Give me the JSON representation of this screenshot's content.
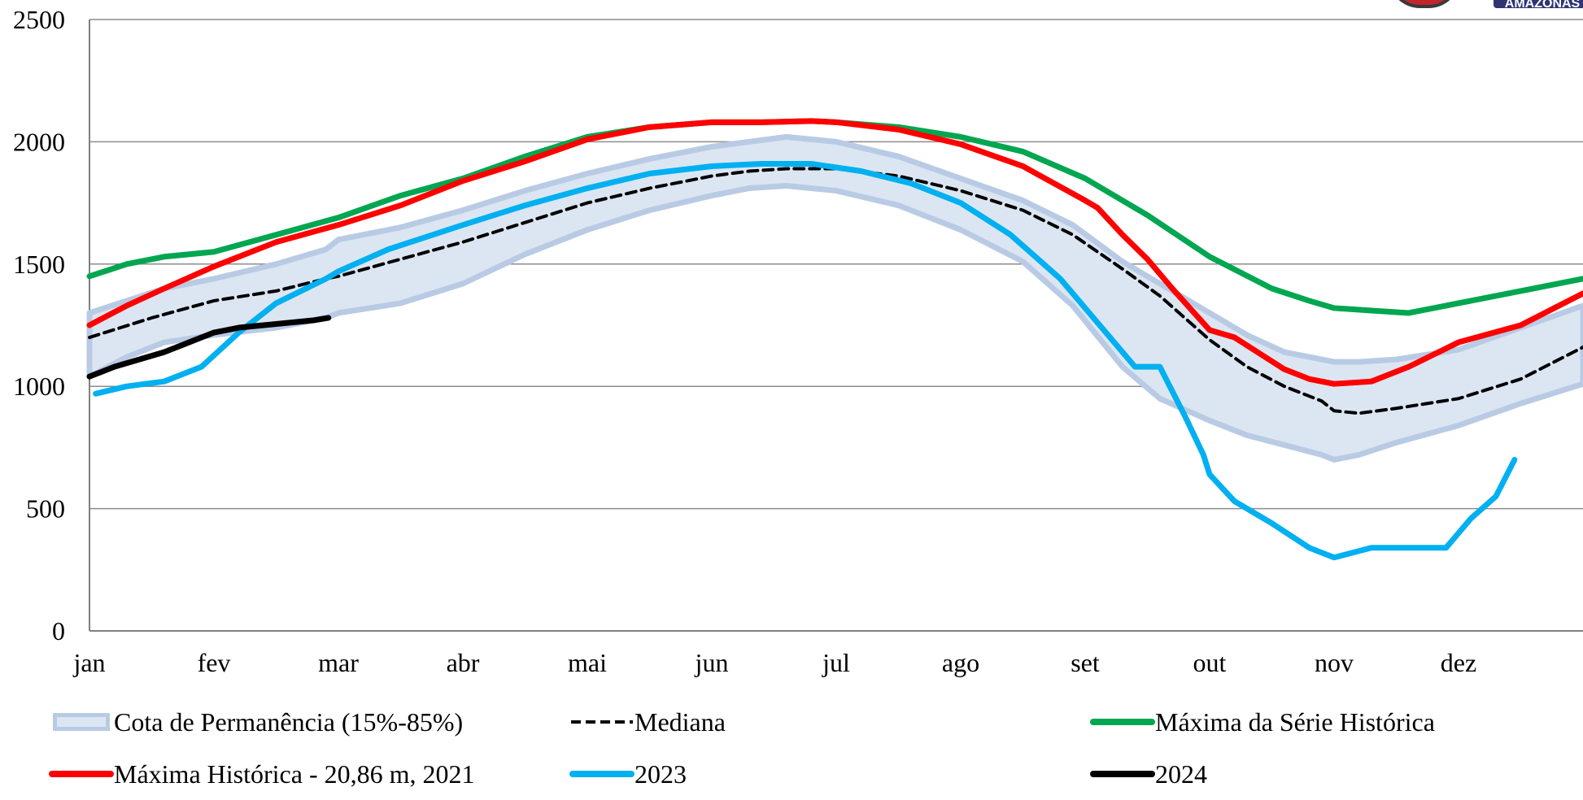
{
  "chart_data": {
    "type": "line",
    "ylim": [
      0,
      2500
    ],
    "yticks": [
      "0",
      "500",
      "1000",
      "1500",
      "2000",
      "2500"
    ],
    "ytick_values": [
      0,
      500,
      1000,
      1500,
      2000,
      2500
    ],
    "xlim": [
      0,
      12
    ],
    "xticks": [
      "jan",
      "fev",
      "mar",
      "abr",
      "mai",
      "jun",
      "jul",
      "ago",
      "set",
      "out",
      "nov",
      "dez"
    ],
    "grid": true,
    "legend_position": "bottom",
    "band": {
      "name": "Cota de Permanência (15%-85%)",
      "color": "#c6d4e8",
      "x": [
        0,
        0.3,
        0.6,
        1,
        1.5,
        1.9,
        2,
        2.5,
        3,
        3.5,
        4,
        4.5,
        5,
        5.3,
        5.6,
        6,
        6.5,
        7,
        7.5,
        7.9,
        8.3,
        8.6,
        9,
        9.3,
        9.6,
        9.9,
        10,
        10.2,
        10.5,
        11,
        11.5,
        12
      ],
      "low": [
        1040,
        1120,
        1180,
        1210,
        1240,
        1280,
        1300,
        1340,
        1420,
        1540,
        1640,
        1720,
        1780,
        1810,
        1820,
        1800,
        1740,
        1640,
        1510,
        1330,
        1080,
        950,
        860,
        800,
        760,
        720,
        700,
        720,
        770,
        840,
        930,
        1010
      ],
      "high": [
        1300,
        1350,
        1400,
        1440,
        1500,
        1560,
        1600,
        1650,
        1720,
        1800,
        1870,
        1930,
        1980,
        2000,
        2020,
        2000,
        1940,
        1850,
        1760,
        1660,
        1510,
        1420,
        1300,
        1210,
        1140,
        1110,
        1100,
        1100,
        1110,
        1150,
        1240,
        1330
      ]
    },
    "series": [
      {
        "name": "Mediana",
        "color": "#000000",
        "dashed": true,
        "x": [
          0,
          0.5,
          1,
          1.5,
          1.9,
          2,
          2.5,
          3,
          3.5,
          4,
          4.5,
          5,
          5.3,
          5.6,
          6,
          6.5,
          7,
          7.5,
          7.9,
          8.3,
          8.6,
          9,
          9.3,
          9.6,
          9.9,
          10,
          10.2,
          10.5,
          11,
          11.5,
          12
        ],
        "values": [
          1200,
          1280,
          1350,
          1390,
          1440,
          1450,
          1520,
          1590,
          1670,
          1750,
          1810,
          1860,
          1880,
          1890,
          1890,
          1860,
          1800,
          1720,
          1620,
          1480,
          1370,
          1190,
          1080,
          1000,
          940,
          900,
          890,
          910,
          950,
          1030,
          1160
        ]
      },
      {
        "name": "Máxima da Série Histórica",
        "color": "#00a650",
        "x": [
          0,
          0.3,
          0.6,
          1,
          1.5,
          2,
          2.5,
          3,
          3.5,
          4,
          4.5,
          5,
          5.4,
          5.8,
          6,
          6.5,
          7,
          7.5,
          8,
          8.5,
          9,
          9.5,
          9.8,
          10,
          10.3,
          10.6,
          11,
          11.3,
          11.6,
          12
        ],
        "values": [
          1450,
          1500,
          1530,
          1550,
          1620,
          1690,
          1780,
          1850,
          1940,
          2020,
          2060,
          2080,
          2080,
          2085,
          2080,
          2060,
          2020,
          1960,
          1850,
          1700,
          1530,
          1400,
          1350,
          1320,
          1310,
          1300,
          1340,
          1370,
          1400,
          1440
        ]
      },
      {
        "name": "Máxima Histórica - 20,86 m, 2021",
        "color": "#ff0000",
        "x": [
          0,
          0.3,
          0.6,
          1,
          1.5,
          2,
          2.5,
          3,
          3.5,
          4,
          4.5,
          5,
          5.4,
          5.8,
          6,
          6.5,
          7,
          7.5,
          8,
          8.1,
          8.3,
          8.5,
          8.7,
          9,
          9.2,
          9.6,
          9.8,
          10,
          10.3,
          10.6,
          11,
          11.5,
          12
        ],
        "values": [
          1250,
          1330,
          1400,
          1490,
          1590,
          1660,
          1740,
          1840,
          1920,
          2010,
          2060,
          2080,
          2080,
          2085,
          2080,
          2050,
          1990,
          1900,
          1760,
          1730,
          1620,
          1520,
          1400,
          1230,
          1200,
          1070,
          1030,
          1010,
          1020,
          1080,
          1180,
          1250,
          1380
        ]
      },
      {
        "name": "2023",
        "color": "#00b0f0",
        "x": [
          0.05,
          0.3,
          0.6,
          0.9,
          1.2,
          1.5,
          1.9,
          2,
          2.4,
          3,
          3.5,
          4,
          4.5,
          5,
          5.4,
          5.8,
          6.2,
          6.6,
          7,
          7.4,
          7.8,
          8.1,
          8.4,
          8.6,
          8.8,
          8.95,
          9,
          9.2,
          9.5,
          9.8,
          10,
          10.3,
          10.6,
          10.9,
          11.1,
          11.3,
          11.45
        ],
        "values": [
          970,
          1000,
          1020,
          1080,
          1220,
          1340,
          1440,
          1470,
          1560,
          1660,
          1740,
          1810,
          1870,
          1900,
          1910,
          1910,
          1880,
          1830,
          1750,
          1620,
          1440,
          1260,
          1080,
          1080,
          880,
          720,
          640,
          530,
          440,
          340,
          300,
          340,
          340,
          340,
          460,
          550,
          700
        ]
      },
      {
        "name": "2024",
        "color": "#000000",
        "x": [
          0,
          0.2,
          0.4,
          0.6,
          0.8,
          1,
          1.2,
          1.4,
          1.6,
          1.8,
          1.92
        ],
        "values": [
          1040,
          1080,
          1110,
          1140,
          1180,
          1220,
          1240,
          1250,
          1260,
          1270,
          1280
        ]
      }
    ]
  },
  "legend": {
    "band_label": "Cota de Permanência (15%-85%)",
    "median_label": "Mediana",
    "max_series_label": "Máxima da Série Histórica",
    "max_hist_label": "Máxima Histórica - 20,86 m, 2021",
    "y2023_label": "2023",
    "y2024_label": "2024"
  },
  "logo": {
    "text": "AMAZONAS"
  }
}
